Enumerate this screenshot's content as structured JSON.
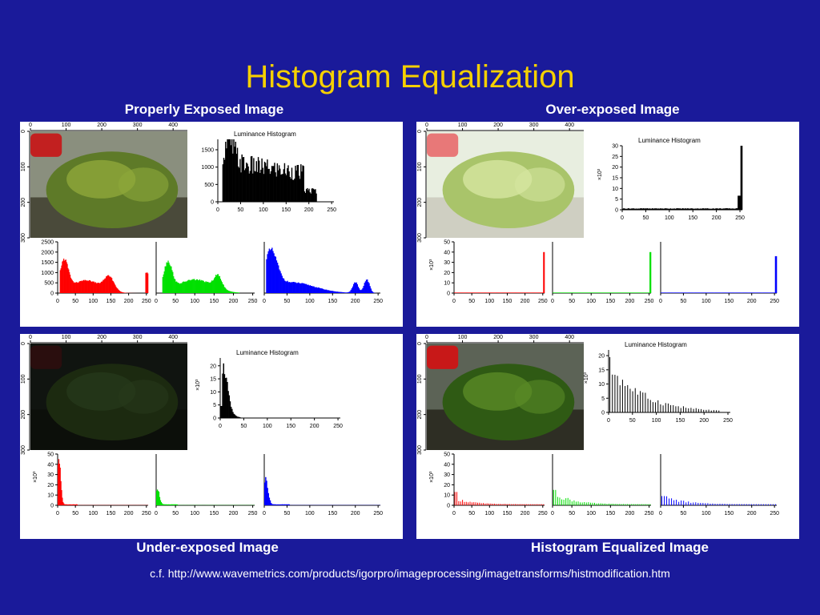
{
  "slide": {
    "title": "Histogram Equalization",
    "footer": "c.f. http://www.wavemetrics.com/products/igorpro/imageprocessing/imagetransforms/histmodification.htm"
  },
  "captions": {
    "proper": "Properly Exposed Image",
    "over": "Over-exposed Image",
    "under": "Under-exposed Image",
    "equalized": "Histogram Equalized Image"
  },
  "colors": {
    "background": "#1a1a9a",
    "title": "#f5d000",
    "red": "#ff0000",
    "green": "#00e000",
    "blue": "#0000ff",
    "luminance": "#000000"
  },
  "image_axis": {
    "x_ticks": [
      "0",
      "100",
      "200",
      "300",
      "400"
    ],
    "y_ticks": [
      "0",
      "100",
      "200",
      "300"
    ]
  },
  "chart_data": [
    {
      "id": "proper",
      "type": "area",
      "image_tone": "normal",
      "luminance": {
        "title": "Luminance Histogram",
        "shape": "proper",
        "xlim": [
          0,
          255
        ],
        "x_ticks": [
          "0",
          "50",
          "100",
          "150",
          "200",
          "250"
        ],
        "ylim": [
          0,
          1800
        ],
        "y_ticks": [
          "0",
          "500",
          "1000",
          "1500"
        ],
        "y_scale_label": ""
      },
      "channels": {
        "xlim": [
          0,
          255
        ],
        "x_ticks": [
          "0",
          "50",
          "100",
          "150",
          "200",
          "250"
        ],
        "ylim": [
          0,
          2500
        ],
        "y_ticks": [
          "0",
          "500",
          "1000",
          "1500",
          "2000",
          "2500"
        ],
        "y_scale_label": "",
        "series": [
          {
            "color": "red",
            "shape": "proper_red"
          },
          {
            "color": "green",
            "shape": "proper_green"
          },
          {
            "color": "blue",
            "shape": "proper_blue"
          }
        ]
      }
    },
    {
      "id": "over",
      "type": "area",
      "image_tone": "over",
      "luminance": {
        "title": "Luminance Histogram",
        "shape": "over",
        "xlim": [
          0,
          255
        ],
        "x_ticks": [
          "0",
          "50",
          "100",
          "150",
          "200",
          "250"
        ],
        "ylim": [
          0,
          30
        ],
        "y_ticks": [
          "0",
          "5",
          "10",
          "15",
          "20",
          "25",
          "30"
        ],
        "y_scale_label": "×10³"
      },
      "channels": {
        "xlim": [
          0,
          255
        ],
        "x_ticks": [
          "0",
          "50",
          "100",
          "150",
          "200",
          "250"
        ],
        "ylim": [
          0,
          50
        ],
        "y_ticks": [
          "0",
          "10",
          "20",
          "30",
          "40",
          "50"
        ],
        "y_scale_label": "×10³",
        "series": [
          {
            "color": "red",
            "shape": "over"
          },
          {
            "color": "green",
            "shape": "over"
          },
          {
            "color": "blue",
            "shape": "over"
          }
        ]
      }
    },
    {
      "id": "under",
      "type": "area",
      "image_tone": "under",
      "luminance": {
        "title": "Luminance Histogram",
        "shape": "under",
        "xlim": [
          0,
          255
        ],
        "x_ticks": [
          "0",
          "50",
          "100",
          "150",
          "200",
          "250"
        ],
        "ylim": [
          0,
          23
        ],
        "y_ticks": [
          "0",
          "5",
          "10",
          "15",
          "20"
        ],
        "y_scale_label": "×10³"
      },
      "channels": {
        "xlim": [
          0,
          255
        ],
        "x_ticks": [
          "0",
          "50",
          "100",
          "150",
          "200",
          "250"
        ],
        "ylim": [
          0,
          50
        ],
        "y_ticks": [
          "0",
          "10",
          "20",
          "30",
          "40",
          "50"
        ],
        "y_scale_label": "×10³",
        "series": [
          {
            "color": "red",
            "shape": "under"
          },
          {
            "color": "green",
            "shape": "under"
          },
          {
            "color": "blue",
            "shape": "under"
          }
        ]
      }
    },
    {
      "id": "equalized",
      "type": "bar",
      "image_tone": "equalized",
      "luminance": {
        "title": "Luminance Histogram",
        "shape": "equalized",
        "xlim": [
          0,
          255
        ],
        "x_ticks": [
          "0",
          "50",
          "100",
          "150",
          "200",
          "250"
        ],
        "ylim": [
          0,
          22
        ],
        "y_ticks": [
          "0",
          "5",
          "10",
          "15",
          "20"
        ],
        "y_scale_label": "×10³"
      },
      "channels": {
        "xlim": [
          0,
          255
        ],
        "x_ticks": [
          "0",
          "50",
          "100",
          "150",
          "200",
          "250"
        ],
        "ylim": [
          0,
          50
        ],
        "y_ticks": [
          "0",
          "10",
          "20",
          "30",
          "40",
          "50"
        ],
        "y_scale_label": "×10³",
        "series": [
          {
            "color": "red",
            "shape": "eq_red"
          },
          {
            "color": "green",
            "shape": "eq_green"
          },
          {
            "color": "blue",
            "shape": "eq_blue"
          }
        ]
      }
    }
  ]
}
